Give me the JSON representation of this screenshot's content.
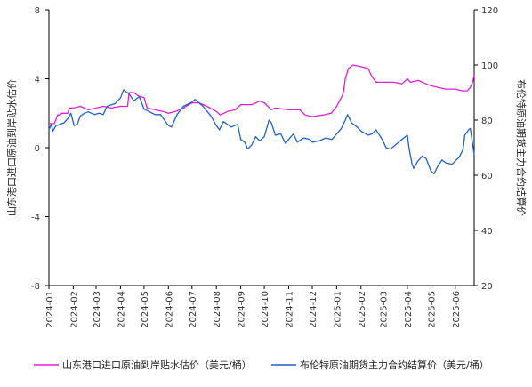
{
  "chart_data": {
    "type": "line",
    "title": "",
    "xlabel": "",
    "ylabel_left": "山东港口进口原油到岸贴水估价",
    "ylabel_right": "布伦特原油期货主力合约结算价",
    "ylim_left": [
      -8,
      8
    ],
    "ylim_right": [
      20,
      120
    ],
    "yticks_left": [
      "-8",
      "-4",
      "0",
      "4",
      "8"
    ],
    "yticks_right": [
      "20",
      "40",
      "60",
      "80",
      "100",
      "120"
    ],
    "xticks": [
      "2024-01",
      "2024-02",
      "2024-03",
      "2024-04",
      "2024-05",
      "2024-06",
      "2024-07",
      "2024-08",
      "2024-09",
      "2024-10",
      "2024-11",
      "2024-12",
      "2025-01",
      "2025-02",
      "2025-03",
      "2025-04",
      "2025-05",
      "2025-06"
    ],
    "x_range": [
      "2024-01-01",
      "2025-06-25"
    ],
    "grid": false,
    "legend_position": "bottom",
    "series": [
      {
        "name": "山东港口进口原油到岸贴水估价（美元/桶）",
        "axis": "left",
        "color": "#e020d8",
        "points": [
          [
            "2024-01-01",
            1.4
          ],
          [
            "2024-01-08",
            1.4
          ],
          [
            "2024-01-12",
            1.9
          ],
          [
            "2024-01-15",
            1.9
          ],
          [
            "2024-01-17",
            2.0
          ],
          [
            "2024-01-25",
            2.0
          ],
          [
            "2024-01-27",
            2.3
          ],
          [
            "2024-02-01",
            2.3
          ],
          [
            "2024-02-10",
            2.4
          ],
          [
            "2024-02-20",
            2.2
          ],
          [
            "2024-03-01",
            2.3
          ],
          [
            "2024-03-10",
            2.4
          ],
          [
            "2024-03-20",
            2.3
          ],
          [
            "2024-04-01",
            2.4
          ],
          [
            "2024-04-10",
            2.4
          ],
          [
            "2024-04-12",
            3.2
          ],
          [
            "2024-04-18",
            3.2
          ],
          [
            "2024-04-24",
            3.0
          ],
          [
            "2024-05-01",
            2.9
          ],
          [
            "2024-05-05",
            2.3
          ],
          [
            "2024-05-15",
            2.2
          ],
          [
            "2024-05-25",
            2.1
          ],
          [
            "2024-06-01",
            2.0
          ],
          [
            "2024-06-10",
            2.1
          ],
          [
            "2024-06-20",
            2.3
          ],
          [
            "2024-07-01",
            2.6
          ],
          [
            "2024-07-10",
            2.6
          ],
          [
            "2024-07-20",
            2.4
          ],
          [
            "2024-08-01",
            2.1
          ],
          [
            "2024-08-06",
            1.9
          ],
          [
            "2024-08-15",
            2.1
          ],
          [
            "2024-08-25",
            2.2
          ],
          [
            "2024-09-01",
            2.5
          ],
          [
            "2024-09-15",
            2.5
          ],
          [
            "2024-09-25",
            2.7
          ],
          [
            "2024-10-01",
            2.6
          ],
          [
            "2024-10-10",
            2.2
          ],
          [
            "2024-10-15",
            2.3
          ],
          [
            "2024-11-01",
            2.2
          ],
          [
            "2024-11-15",
            2.2
          ],
          [
            "2024-11-22",
            1.9
          ],
          [
            "2024-12-01",
            1.8
          ],
          [
            "2024-12-15",
            1.9
          ],
          [
            "2024-12-25",
            2.0
          ],
          [
            "2025-01-01",
            2.4
          ],
          [
            "2025-01-08",
            3.0
          ],
          [
            "2025-01-10",
            3.3
          ],
          [
            "2025-01-12",
            4.0
          ],
          [
            "2025-01-16",
            4.6
          ],
          [
            "2025-01-22",
            4.8
          ],
          [
            "2025-02-01",
            4.7
          ],
          [
            "2025-02-10",
            4.6
          ],
          [
            "2025-02-14",
            4.2
          ],
          [
            "2025-02-20",
            3.8
          ],
          [
            "2025-03-01",
            3.8
          ],
          [
            "2025-03-15",
            3.8
          ],
          [
            "2025-03-25",
            3.7
          ],
          [
            "2025-04-01",
            4.0
          ],
          [
            "2025-04-05",
            3.8
          ],
          [
            "2025-04-15",
            3.9
          ],
          [
            "2025-04-25",
            3.7
          ],
          [
            "2025-05-01",
            3.6
          ],
          [
            "2025-05-10",
            3.5
          ],
          [
            "2025-05-20",
            3.4
          ],
          [
            "2025-06-01",
            3.4
          ],
          [
            "2025-06-10",
            3.3
          ],
          [
            "2025-06-16",
            3.3
          ],
          [
            "2025-06-20",
            3.5
          ],
          [
            "2025-06-23",
            3.8
          ],
          [
            "2025-06-25",
            4.2
          ]
        ]
      },
      {
        "name": "布伦特原油期货主力合约结算价（美元/桶）",
        "axis": "right",
        "color": "#1f5fcf",
        "points": [
          [
            "2024-01-01",
            76.5
          ],
          [
            "2024-01-04",
            78.5
          ],
          [
            "2024-01-06",
            76.0
          ],
          [
            "2024-01-10",
            78.0
          ],
          [
            "2024-01-15",
            78.5
          ],
          [
            "2024-01-20",
            79.0
          ],
          [
            "2024-01-25",
            80.5
          ],
          [
            "2024-01-29",
            82.5
          ],
          [
            "2024-02-02",
            78.0
          ],
          [
            "2024-02-06",
            78.5
          ],
          [
            "2024-02-10",
            81.5
          ],
          [
            "2024-02-15",
            82.5
          ],
          [
            "2024-02-20",
            83.0
          ],
          [
            "2024-02-28",
            82.0
          ],
          [
            "2024-03-05",
            82.5
          ],
          [
            "2024-03-10",
            82.0
          ],
          [
            "2024-03-15",
            85.0
          ],
          [
            "2024-03-25",
            86.0
          ],
          [
            "2024-04-01",
            88.0
          ],
          [
            "2024-04-05",
            91.0
          ],
          [
            "2024-04-12",
            89.5
          ],
          [
            "2024-04-18",
            87.0
          ],
          [
            "2024-04-25",
            88.5
          ],
          [
            "2024-05-01",
            84.0
          ],
          [
            "2024-05-08",
            83.0
          ],
          [
            "2024-05-15",
            82.0
          ],
          [
            "2024-05-22",
            82.0
          ],
          [
            "2024-06-01",
            78.0
          ],
          [
            "2024-06-05",
            77.5
          ],
          [
            "2024-06-12",
            82.0
          ],
          [
            "2024-06-20",
            85.0
          ],
          [
            "2024-07-01",
            86.5
          ],
          [
            "2024-07-05",
            87.5
          ],
          [
            "2024-07-15",
            85.0
          ],
          [
            "2024-07-25",
            81.5
          ],
          [
            "2024-08-01",
            78.0
          ],
          [
            "2024-08-05",
            76.5
          ],
          [
            "2024-08-10",
            79.5
          ],
          [
            "2024-08-20",
            77.5
          ],
          [
            "2024-08-28",
            78.5
          ],
          [
            "2024-09-01",
            73.0
          ],
          [
            "2024-09-06",
            72.0
          ],
          [
            "2024-09-10",
            69.5
          ],
          [
            "2024-09-15",
            71.0
          ],
          [
            "2024-09-20",
            74.0
          ],
          [
            "2024-09-25",
            72.5
          ],
          [
            "2024-10-01",
            74.0
          ],
          [
            "2024-10-07",
            80.0
          ],
          [
            "2024-10-10",
            79.0
          ],
          [
            "2024-10-15",
            74.5
          ],
          [
            "2024-10-22",
            75.0
          ],
          [
            "2024-10-28",
            71.5
          ],
          [
            "2024-11-01",
            73.0
          ],
          [
            "2024-11-07",
            75.0
          ],
          [
            "2024-11-12",
            72.0
          ],
          [
            "2024-11-20",
            73.5
          ],
          [
            "2024-11-28",
            73.0
          ],
          [
            "2024-12-01",
            72.0
          ],
          [
            "2024-12-10",
            72.5
          ],
          [
            "2024-12-18",
            73.5
          ],
          [
            "2024-12-26",
            73.0
          ],
          [
            "2025-01-01",
            75.0
          ],
          [
            "2025-01-07",
            77.0
          ],
          [
            "2025-01-12",
            80.0
          ],
          [
            "2025-01-15",
            82.0
          ],
          [
            "2025-01-20",
            79.0
          ],
          [
            "2025-01-27",
            77.5
          ],
          [
            "2025-02-01",
            76.0
          ],
          [
            "2025-02-10",
            74.5
          ],
          [
            "2025-02-15",
            75.0
          ],
          [
            "2025-02-20",
            76.5
          ],
          [
            "2025-02-28",
            73.0
          ],
          [
            "2025-03-05",
            70.0
          ],
          [
            "2025-03-10",
            69.5
          ],
          [
            "2025-03-15",
            70.5
          ],
          [
            "2025-03-25",
            73.0
          ],
          [
            "2025-04-01",
            74.5
          ],
          [
            "2025-04-03",
            70.0
          ],
          [
            "2025-04-07",
            64.0
          ],
          [
            "2025-04-09",
            62.5
          ],
          [
            "2025-04-14",
            65.0
          ],
          [
            "2025-04-20",
            67.0
          ],
          [
            "2025-04-25",
            66.0
          ],
          [
            "2025-05-01",
            61.5
          ],
          [
            "2025-05-05",
            60.5
          ],
          [
            "2025-05-10",
            63.5
          ],
          [
            "2025-05-15",
            65.5
          ],
          [
            "2025-05-20",
            64.5
          ],
          [
            "2025-05-28",
            64.0
          ],
          [
            "2025-06-02",
            65.5
          ],
          [
            "2025-06-06",
            66.5
          ],
          [
            "2025-06-11",
            69.5
          ],
          [
            "2025-06-13",
            74.5
          ],
          [
            "2025-06-18",
            76.5
          ],
          [
            "2025-06-20",
            77.0
          ],
          [
            "2025-06-23",
            71.5
          ],
          [
            "2025-06-25",
            67.5
          ]
        ]
      }
    ]
  }
}
